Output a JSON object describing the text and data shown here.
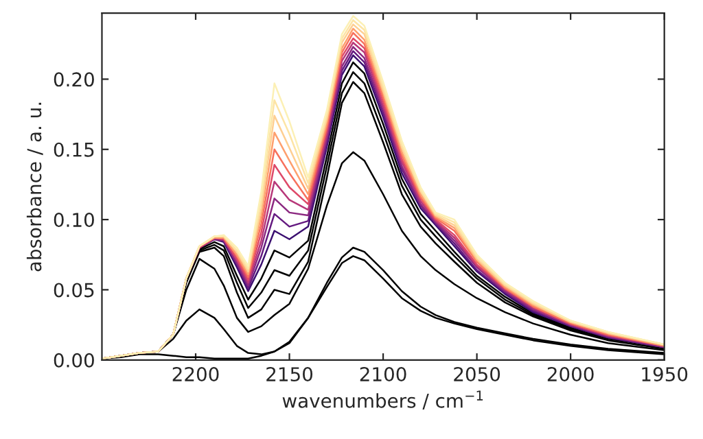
{
  "chart_data": {
    "type": "line",
    "xlabel": "wavenumbers / cm$^{−1}$",
    "ylabel": "absorbance / a. u.",
    "x": [
      2250,
      2240,
      2230,
      2220,
      2212,
      2205,
      2198,
      2190,
      2185,
      2178,
      2172,
      2165,
      2158,
      2150,
      2140,
      2130,
      2122,
      2116,
      2110,
      2100,
      2090,
      2080,
      2072,
      2062,
      2050,
      2035,
      2020,
      2000,
      1980,
      1950
    ],
    "xlim": [
      2250,
      1950
    ],
    "xticks": [
      2200,
      2150,
      2100,
      2050,
      2000,
      1950
    ],
    "ylim": [
      0,
      0.247
    ],
    "yticks": [
      {
        "value": 0,
        "label": "0.00"
      },
      {
        "value": 0.05,
        "label": "0.05"
      },
      {
        "value": 0.1,
        "label": "0.10"
      },
      {
        "value": 0.15,
        "label": "0.15"
      },
      {
        "value": 0.2,
        "label": "0.20"
      }
    ],
    "grid": false,
    "marker": "none",
    "line_style": "solid",
    "series": [
      {
        "color": "#000000",
        "values": [
          0.001,
          0.002,
          0.004,
          0.004,
          0.003,
          0.002,
          0.002,
          0.001,
          0.001,
          0.001,
          0.001,
          0.003,
          0.006,
          0.013,
          0.03,
          0.052,
          0.069,
          0.074,
          0.071,
          0.058,
          0.044,
          0.035,
          0.03,
          0.026,
          0.022,
          0.018,
          0.014,
          0.01,
          0.007,
          0.004
        ]
      },
      {
        "color": "#000000",
        "values": [
          0.001,
          0.003,
          0.005,
          0.006,
          0.015,
          0.028,
          0.036,
          0.03,
          0.022,
          0.01,
          0.005,
          0.004,
          0.006,
          0.012,
          0.03,
          0.055,
          0.073,
          0.08,
          0.077,
          0.064,
          0.049,
          0.038,
          0.032,
          0.027,
          0.023,
          0.019,
          0.015,
          0.011,
          0.008,
          0.005
        ]
      },
      {
        "color": "#000000",
        "values": [
          0.001,
          0.003,
          0.005,
          0.006,
          0.018,
          0.05,
          0.072,
          0.065,
          0.053,
          0.03,
          0.02,
          0.024,
          0.032,
          0.04,
          0.065,
          0.11,
          0.14,
          0.148,
          0.142,
          0.118,
          0.092,
          0.074,
          0.064,
          0.054,
          0.044,
          0.034,
          0.026,
          0.018,
          0.012,
          0.007
        ]
      },
      {
        "color": "#000000",
        "values": [
          0.001,
          0.003,
          0.005,
          0.006,
          0.018,
          0.055,
          0.077,
          0.08,
          0.074,
          0.048,
          0.03,
          0.036,
          0.05,
          0.047,
          0.07,
          0.13,
          0.183,
          0.198,
          0.19,
          0.155,
          0.118,
          0.095,
          0.083,
          0.07,
          0.055,
          0.041,
          0.031,
          0.021,
          0.014,
          0.008
        ]
      },
      {
        "color": "#000000",
        "values": [
          0.001,
          0.003,
          0.005,
          0.006,
          0.018,
          0.056,
          0.078,
          0.082,
          0.078,
          0.055,
          0.037,
          0.048,
          0.064,
          0.06,
          0.078,
          0.138,
          0.19,
          0.205,
          0.197,
          0.162,
          0.124,
          0.1,
          0.088,
          0.074,
          0.058,
          0.043,
          0.032,
          0.022,
          0.015,
          0.009
        ]
      },
      {
        "color": "#000000",
        "values": [
          0.001,
          0.003,
          0.005,
          0.006,
          0.018,
          0.057,
          0.079,
          0.084,
          0.081,
          0.06,
          0.043,
          0.058,
          0.078,
          0.073,
          0.085,
          0.145,
          0.197,
          0.212,
          0.204,
          0.168,
          0.129,
          0.104,
          0.092,
          0.077,
          0.06,
          0.045,
          0.033,
          0.023,
          0.016,
          0.009
        ]
      },
      {
        "color": "#3b0f70",
        "values": [
          0.001,
          0.003,
          0.005,
          0.006,
          0.018,
          0.058,
          0.08,
          0.086,
          0.084,
          0.066,
          0.049,
          0.068,
          0.092,
          0.086,
          0.095,
          0.152,
          0.203,
          0.217,
          0.209,
          0.173,
          0.133,
          0.108,
          0.096,
          0.081,
          0.063,
          0.047,
          0.034,
          0.024,
          0.016,
          0.009
        ]
      },
      {
        "color": "#641a80",
        "values": [
          0.001,
          0.003,
          0.005,
          0.006,
          0.018,
          0.058,
          0.08,
          0.086,
          0.085,
          0.068,
          0.051,
          0.074,
          0.104,
          0.095,
          0.099,
          0.155,
          0.206,
          0.22,
          0.212,
          0.176,
          0.136,
          0.11,
          0.097,
          0.083,
          0.064,
          0.048,
          0.035,
          0.024,
          0.016,
          0.009
        ]
      },
      {
        "color": "#8c2981",
        "values": [
          0.001,
          0.003,
          0.005,
          0.006,
          0.018,
          0.058,
          0.08,
          0.086,
          0.085,
          0.069,
          0.053,
          0.08,
          0.115,
          0.105,
          0.103,
          0.158,
          0.209,
          0.223,
          0.215,
          0.179,
          0.138,
          0.111,
          0.098,
          0.085,
          0.066,
          0.049,
          0.036,
          0.025,
          0.017,
          0.009
        ]
      },
      {
        "color": "#b73779",
        "values": [
          0.001,
          0.003,
          0.005,
          0.006,
          0.018,
          0.058,
          0.08,
          0.087,
          0.086,
          0.071,
          0.055,
          0.085,
          0.127,
          0.114,
          0.107,
          0.161,
          0.213,
          0.226,
          0.219,
          0.181,
          0.141,
          0.113,
          0.099,
          0.087,
          0.067,
          0.05,
          0.037,
          0.025,
          0.017,
          0.01
        ]
      },
      {
        "color": "#de4968",
        "values": [
          0.001,
          0.003,
          0.005,
          0.006,
          0.018,
          0.058,
          0.08,
          0.087,
          0.086,
          0.072,
          0.057,
          0.091,
          0.139,
          0.123,
          0.111,
          0.164,
          0.216,
          0.229,
          0.222,
          0.184,
          0.143,
          0.115,
          0.1,
          0.089,
          0.068,
          0.051,
          0.038,
          0.026,
          0.018,
          0.01
        ]
      },
      {
        "color": "#f7705c",
        "values": [
          0.001,
          0.003,
          0.005,
          0.006,
          0.018,
          0.058,
          0.081,
          0.087,
          0.087,
          0.074,
          0.059,
          0.097,
          0.15,
          0.133,
          0.114,
          0.166,
          0.219,
          0.233,
          0.225,
          0.187,
          0.146,
          0.116,
          0.101,
          0.092,
          0.07,
          0.051,
          0.038,
          0.026,
          0.018,
          0.01
        ]
      },
      {
        "color": "#fe9f6d",
        "values": [
          0.001,
          0.003,
          0.005,
          0.006,
          0.018,
          0.058,
          0.081,
          0.087,
          0.087,
          0.075,
          0.061,
          0.103,
          0.162,
          0.142,
          0.118,
          0.169,
          0.222,
          0.236,
          0.228,
          0.19,
          0.148,
          0.118,
          0.102,
          0.094,
          0.071,
          0.052,
          0.039,
          0.027,
          0.019,
          0.01
        ]
      },
      {
        "color": "#fecf92",
        "values": [
          0.001,
          0.003,
          0.005,
          0.006,
          0.018,
          0.058,
          0.081,
          0.088,
          0.088,
          0.077,
          0.063,
          0.108,
          0.174,
          0.151,
          0.122,
          0.172,
          0.226,
          0.239,
          0.232,
          0.192,
          0.151,
          0.12,
          0.103,
          0.096,
          0.072,
          0.053,
          0.04,
          0.027,
          0.019,
          0.011
        ]
      },
      {
        "color": "#fde4a5",
        "values": [
          0.001,
          0.003,
          0.005,
          0.006,
          0.018,
          0.058,
          0.081,
          0.088,
          0.088,
          0.078,
          0.065,
          0.114,
          0.185,
          0.161,
          0.126,
          0.175,
          0.229,
          0.242,
          0.235,
          0.195,
          0.153,
          0.121,
          0.104,
          0.098,
          0.074,
          0.054,
          0.041,
          0.028,
          0.02,
          0.011
        ]
      },
      {
        "color": "#fcf0b5",
        "values": [
          0.001,
          0.003,
          0.005,
          0.006,
          0.018,
          0.058,
          0.081,
          0.088,
          0.089,
          0.08,
          0.067,
          0.12,
          0.197,
          0.17,
          0.13,
          0.178,
          0.232,
          0.245,
          0.238,
          0.198,
          0.156,
          0.123,
          0.105,
          0.1,
          0.075,
          0.055,
          0.042,
          0.028,
          0.02,
          0.011
        ]
      }
    ]
  }
}
